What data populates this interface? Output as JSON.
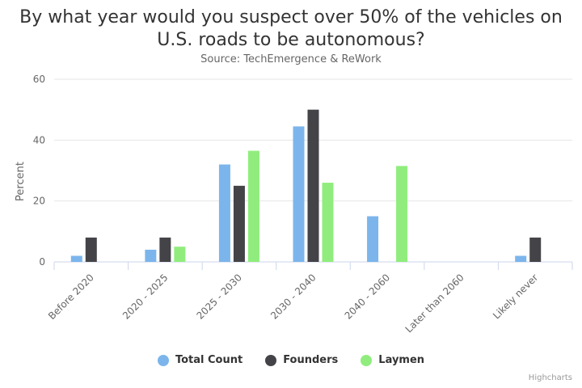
{
  "chart_data": {
    "type": "bar",
    "title_lines": [
      "By what year would you suspect over 50% of the vehicles on",
      "U.S. roads to be autonomous?"
    ],
    "subtitle": "Source: TechEmergence & ReWork",
    "xlabel": "",
    "ylabel": "Percent",
    "ylim": [
      0,
      60
    ],
    "yticks": [
      "0",
      "20",
      "40",
      "60"
    ],
    "grid": true,
    "legend_position": "bottom-center",
    "categories": [
      "Before 2020",
      "2020 - 2025",
      "2025 - 2030",
      "2030 - 2040",
      "2040 - 2060",
      "Later than 2060",
      "Likely never"
    ],
    "series": [
      {
        "name": "Total Count",
        "color": "#7cb5ec",
        "values": [
          2,
          4,
          32,
          44.5,
          15,
          0,
          2
        ]
      },
      {
        "name": "Founders",
        "color": "#434348",
        "values": [
          8,
          8,
          25,
          50,
          0,
          0,
          8
        ]
      },
      {
        "name": "Laymen",
        "color": "#90ed7d",
        "values": [
          0,
          5,
          36.5,
          26,
          31.5,
          0,
          0
        ]
      }
    ]
  },
  "credits": "Highcharts"
}
